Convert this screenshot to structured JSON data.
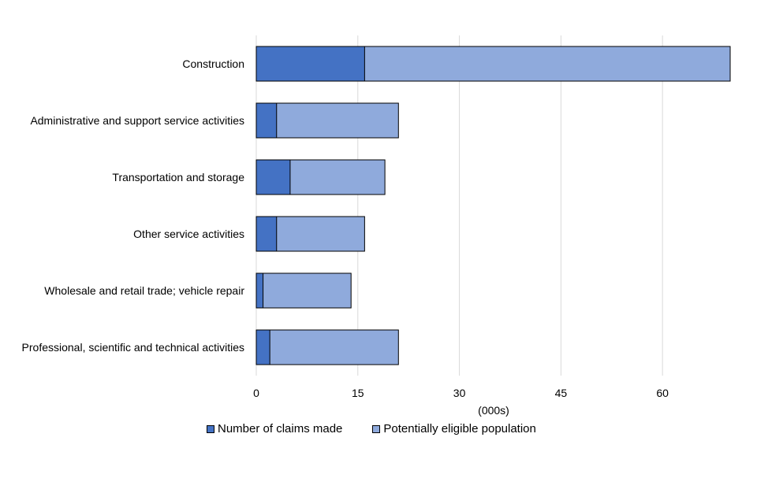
{
  "chart_data": {
    "type": "bar",
    "orientation": "horizontal",
    "categories": [
      "Construction",
      "Administrative and support service activities",
      "Transportation and storage",
      "Other service activities",
      "Wholesale and retail trade; vehicle repair",
      "Professional, scientific and technical activities"
    ],
    "series": [
      {
        "name": "Number of claims made",
        "values": [
          16,
          3,
          5,
          3,
          1,
          2
        ],
        "color": "#4472c4"
      },
      {
        "name": "Potentially eligible population",
        "values": [
          70,
          21,
          19,
          16,
          14,
          21
        ],
        "color": "#8faadc"
      }
    ],
    "xlim": [
      0,
      70
    ],
    "xticks": [
      0,
      15,
      30,
      45,
      60
    ],
    "xunit": "(000s)",
    "grid": "vertical",
    "legend_position": "bottom",
    "overlapped": true
  }
}
